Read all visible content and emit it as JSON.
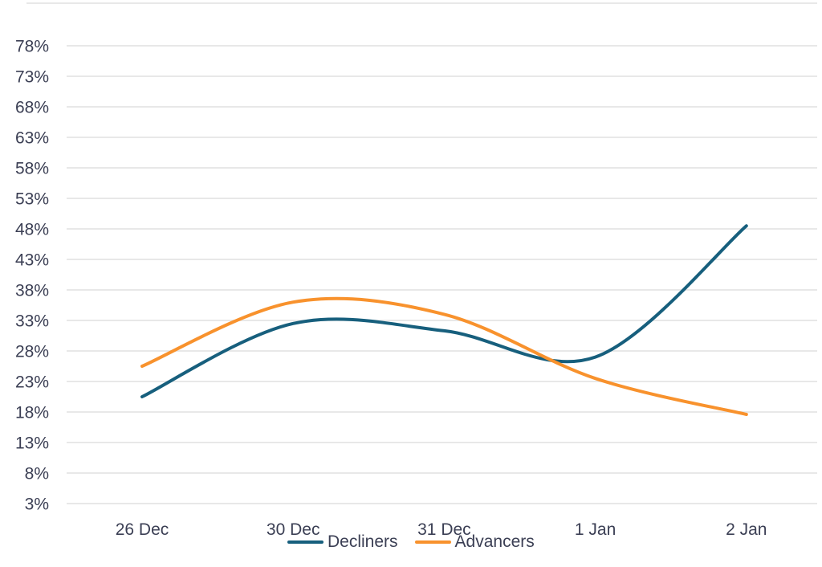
{
  "colors": {
    "background": "#ffffff",
    "grid": "#e8e8e8",
    "axis_text": "#3b3f54"
  },
  "chart_data": {
    "type": "line",
    "title": "",
    "line_style": "smooth-spline",
    "grid": true,
    "legend_position": "bottom-center",
    "x_categories": [
      "26 Dec",
      "30 Dec",
      "31 Dec",
      "1 Jan",
      "2 Jan"
    ],
    "y_axis": {
      "min": 3,
      "max": 78,
      "step": 5,
      "unit": "%",
      "tick_values": [
        78,
        73,
        68,
        63,
        58,
        53,
        48,
        43,
        38,
        33,
        28,
        23,
        18,
        13,
        8,
        3
      ],
      "tick_labels": [
        "78%",
        "73%",
        "68%",
        "63%",
        "58%",
        "53%",
        "48%",
        "43%",
        "38%",
        "33%",
        "28%",
        "23%",
        "18%",
        "13%",
        "8%",
        "3%"
      ]
    },
    "series": [
      {
        "name": "Decliners",
        "color": "#175F7D",
        "values": [
          20.5,
          32.5,
          31.3,
          27,
          48.5
        ]
      },
      {
        "name": "Advancers",
        "color": "#F8922D",
        "values": [
          25.5,
          36,
          34,
          23.5,
          17.6
        ]
      }
    ]
  }
}
